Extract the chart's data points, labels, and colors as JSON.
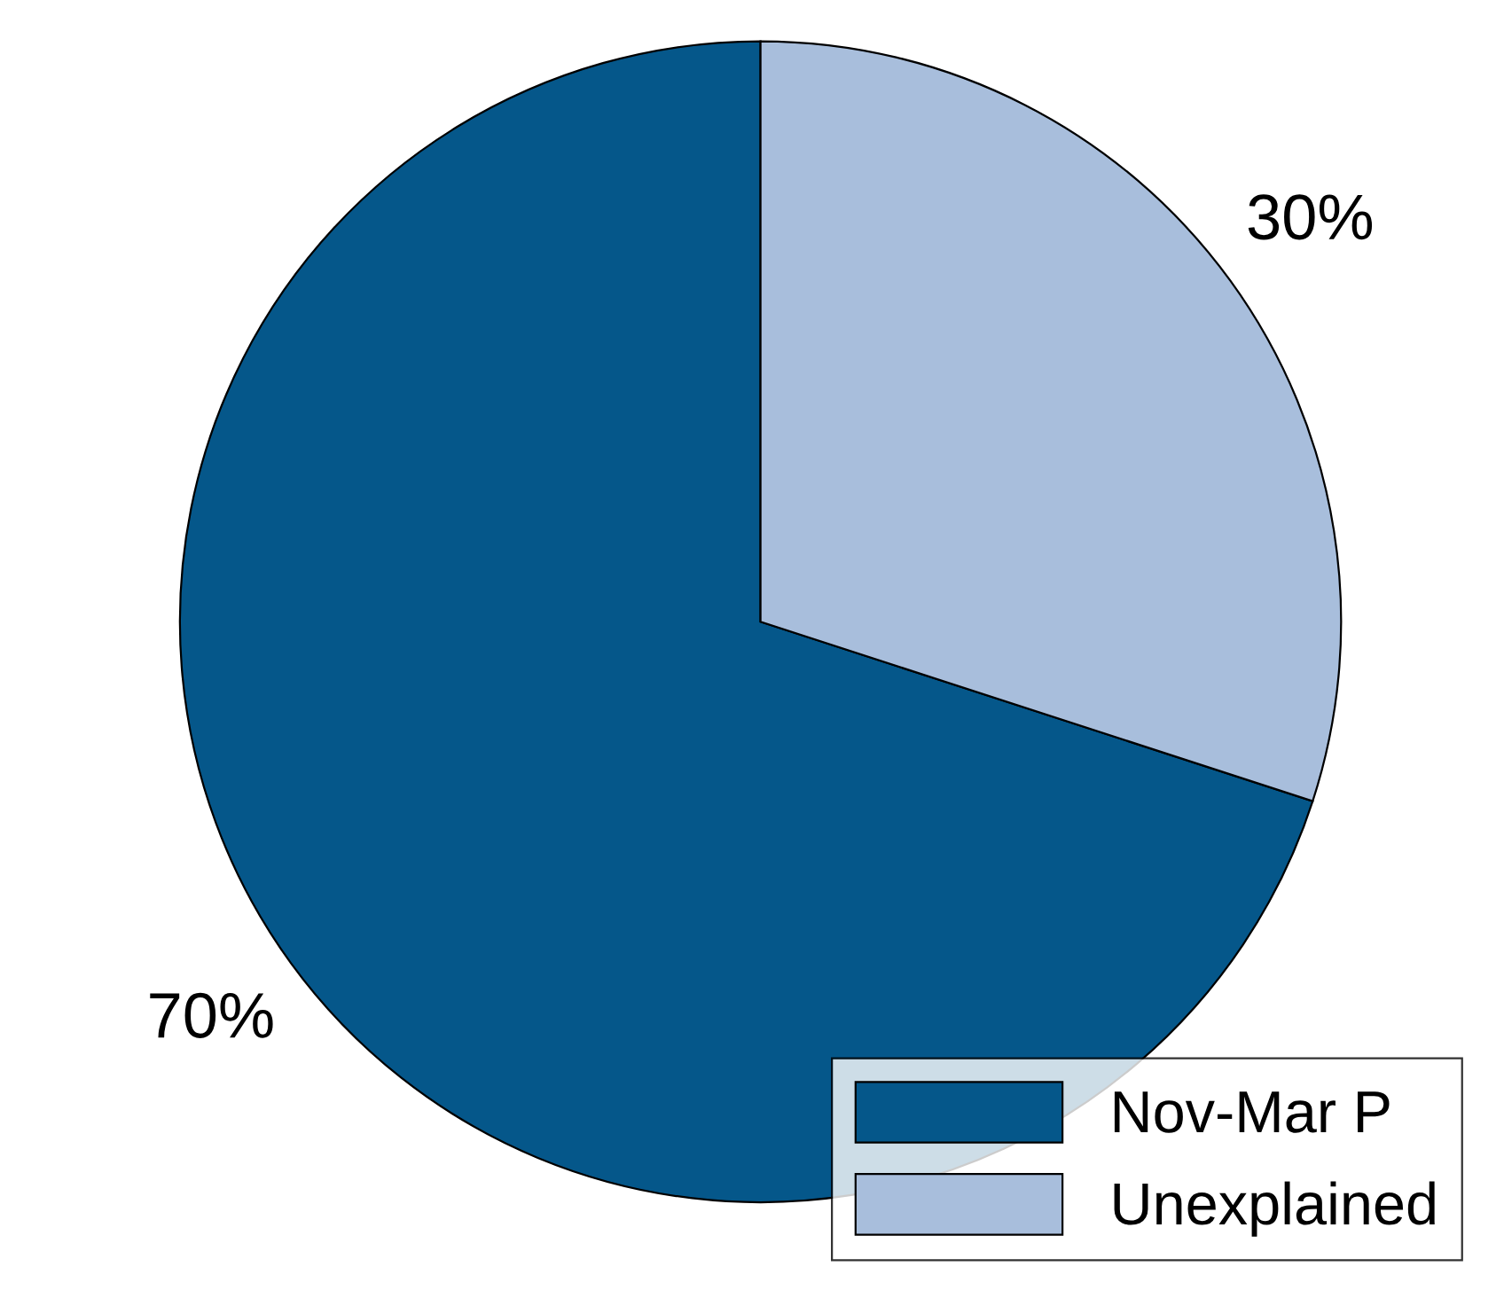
{
  "chart_data": {
    "type": "pie",
    "categories": [
      "Nov-Mar P",
      "Unexplained"
    ],
    "values": [
      70,
      30
    ],
    "colors": [
      "#05578a",
      "#a8bedc"
    ],
    "value_labels": [
      "70%",
      "30%"
    ],
    "legend": "bottom right"
  }
}
